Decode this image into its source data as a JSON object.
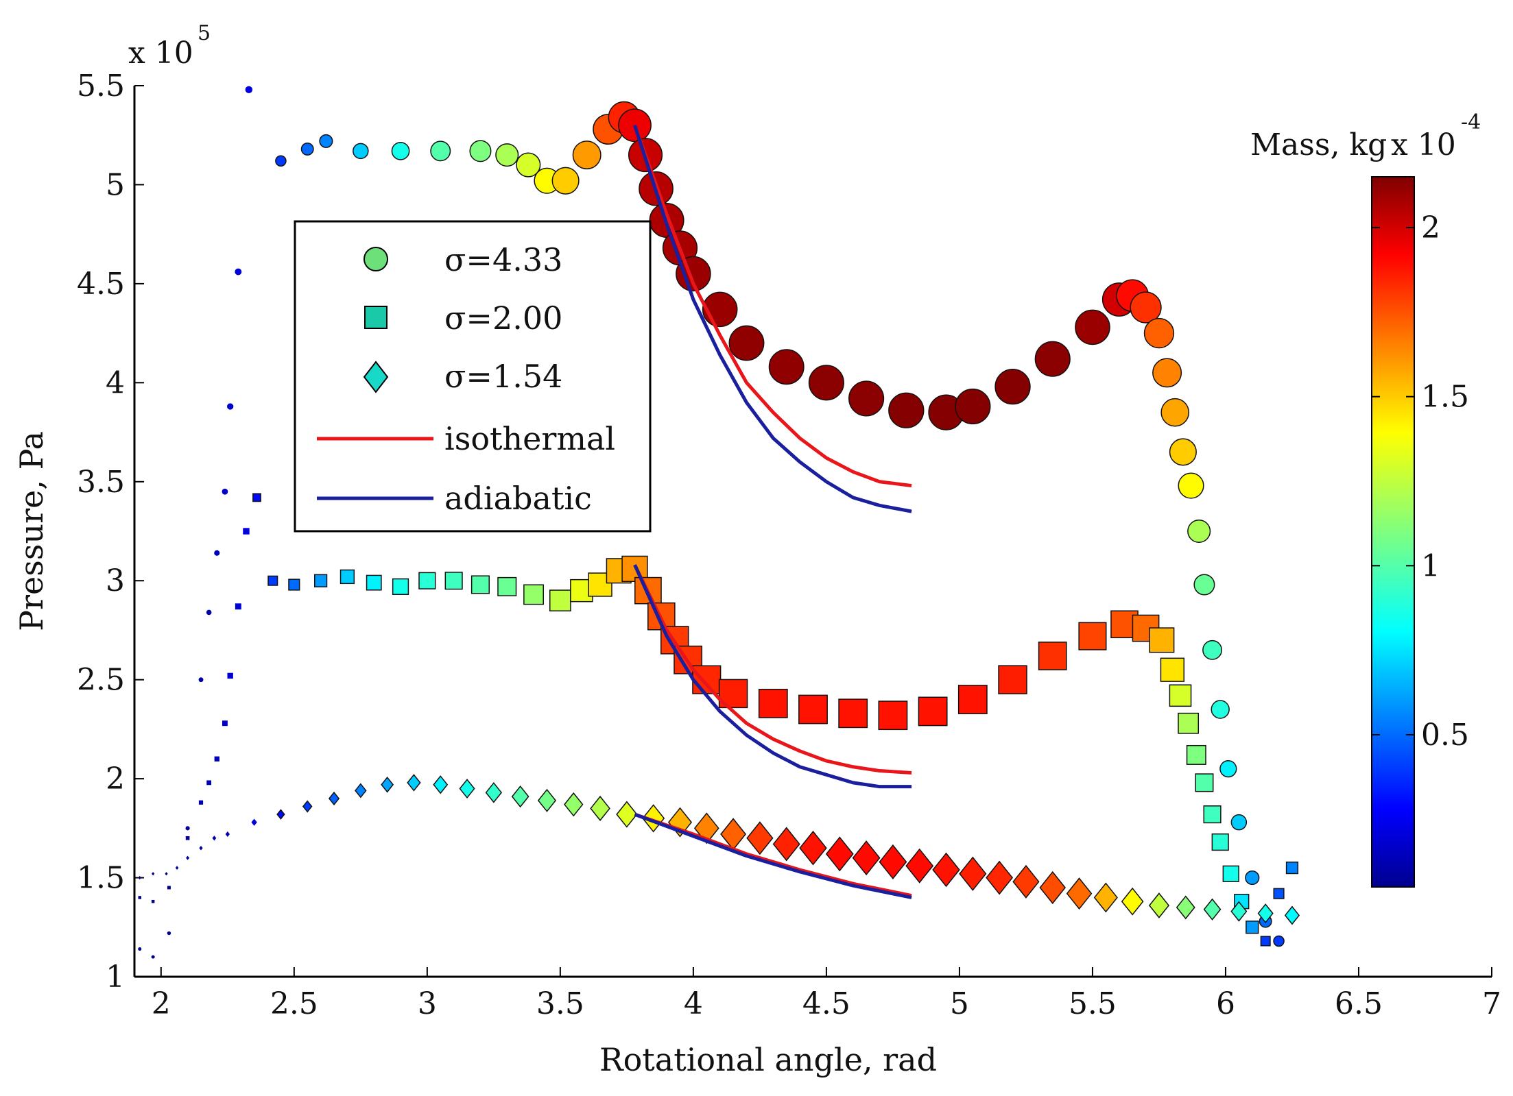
{
  "chart_data": {
    "type": "scatter",
    "title": "",
    "xlabel": "Rotational angle, rad",
    "ylabel": "Pressure, Pa",
    "xlim": [
      1.9,
      7
    ],
    "ylim": [
      1.0,
      5.5
    ],
    "xticks": [
      "2",
      "2.5",
      "3",
      "3.5",
      "4",
      "4.5",
      "5",
      "5.5",
      "6",
      "6.5",
      "7"
    ],
    "yticks": [
      "1",
      "1.5",
      "2",
      "2.5",
      "3",
      "3.5",
      "4",
      "4.5",
      "5",
      "5.5"
    ],
    "y_multiplier": "x 10",
    "y_multiplier_exp": "5",
    "legend": {
      "position": "top-left",
      "entries": [
        "σ=4.33",
        "σ=2.00",
        "σ=1.54",
        "isothermal",
        "adiabatic"
      ]
    },
    "colorbar": {
      "label": "Mass, kg",
      "multiplier": "x 10",
      "multiplier_exp": "-4",
      "range": [
        0.05,
        2.15
      ],
      "ticks": [
        "0.5",
        "1",
        "1.5",
        "2"
      ]
    },
    "series": [
      {
        "name": "σ=4.33",
        "marker": "circle",
        "x": [
          1.92,
          1.97,
          2.03,
          2.1,
          2.15,
          2.18,
          2.21,
          2.24,
          2.26,
          2.29,
          2.33,
          2.45,
          2.55,
          2.62,
          2.75,
          2.9,
          3.05,
          3.2,
          3.3,
          3.38,
          3.45,
          3.52,
          3.6,
          3.68,
          3.74,
          3.78,
          3.82,
          3.86,
          3.9,
          3.95,
          4.0,
          4.1,
          4.2,
          4.35,
          4.5,
          4.65,
          4.8,
          4.95,
          5.05,
          5.2,
          5.35,
          5.5,
          5.6,
          5.65,
          5.7,
          5.75,
          5.78,
          5.81,
          5.84,
          5.87,
          5.9,
          5.92,
          5.95,
          5.98,
          6.01,
          6.05,
          6.1,
          6.15,
          6.2
        ],
        "y": [
          1.14,
          1.1,
          1.22,
          1.75,
          2.5,
          2.84,
          3.14,
          3.45,
          3.88,
          4.56,
          5.48,
          5.12,
          5.18,
          5.22,
          5.17,
          5.17,
          5.17,
          5.17,
          5.15,
          5.1,
          5.02,
          5.02,
          5.15,
          5.28,
          5.34,
          5.3,
          5.15,
          4.98,
          4.82,
          4.68,
          4.55,
          4.37,
          4.2,
          4.08,
          4.0,
          3.92,
          3.86,
          3.85,
          3.88,
          3.98,
          4.12,
          4.28,
          4.42,
          4.44,
          4.38,
          4.25,
          4.05,
          3.85,
          3.65,
          3.48,
          3.25,
          2.98,
          2.65,
          2.35,
          2.05,
          1.78,
          1.5,
          1.28,
          1.18
        ],
        "mass": [
          0.05,
          0.05,
          0.06,
          0.08,
          0.1,
          0.12,
          0.14,
          0.16,
          0.18,
          0.2,
          0.22,
          0.4,
          0.5,
          0.55,
          0.7,
          0.85,
          1.0,
          1.1,
          1.2,
          1.3,
          1.4,
          1.5,
          1.6,
          1.75,
          1.85,
          1.95,
          2.02,
          2.05,
          2.07,
          2.08,
          2.1,
          2.1,
          2.12,
          2.12,
          2.13,
          2.13,
          2.14,
          2.14,
          2.14,
          2.14,
          2.13,
          2.1,
          2.0,
          1.9,
          1.82,
          1.72,
          1.65,
          1.58,
          1.5,
          1.4,
          1.2,
          1.05,
          0.95,
          0.88,
          0.78,
          0.7,
          0.6,
          0.5,
          0.4
        ]
      },
      {
        "name": "σ=2.00",
        "marker": "square",
        "x": [
          1.92,
          1.97,
          2.03,
          2.1,
          2.15,
          2.18,
          2.21,
          2.24,
          2.26,
          2.29,
          2.32,
          2.36,
          2.42,
          2.5,
          2.6,
          2.7,
          2.8,
          2.9,
          3.0,
          3.1,
          3.2,
          3.3,
          3.4,
          3.5,
          3.58,
          3.65,
          3.72,
          3.78,
          3.83,
          3.88,
          3.93,
          3.98,
          4.05,
          4.15,
          4.3,
          4.45,
          4.6,
          4.75,
          4.9,
          5.05,
          5.2,
          5.35,
          5.5,
          5.62,
          5.7,
          5.76,
          5.8,
          5.83,
          5.86,
          5.89,
          5.92,
          5.95,
          5.98,
          6.02,
          6.06,
          6.1,
          6.15,
          6.2,
          6.25
        ],
        "y": [
          1.4,
          1.38,
          1.45,
          1.7,
          1.88,
          1.98,
          2.1,
          2.28,
          2.52,
          2.87,
          3.25,
          3.42,
          3.0,
          2.98,
          3.0,
          3.02,
          2.99,
          2.97,
          3.0,
          3.0,
          2.98,
          2.97,
          2.93,
          2.9,
          2.95,
          2.98,
          3.05,
          3.06,
          2.95,
          2.82,
          2.7,
          2.6,
          2.5,
          2.43,
          2.38,
          2.35,
          2.33,
          2.32,
          2.34,
          2.4,
          2.5,
          2.62,
          2.72,
          2.78,
          2.76,
          2.7,
          2.55,
          2.42,
          2.28,
          2.12,
          1.98,
          1.82,
          1.68,
          1.52,
          1.38,
          1.25,
          1.18,
          1.42,
          1.55
        ],
        "mass": [
          0.05,
          0.05,
          0.06,
          0.08,
          0.1,
          0.12,
          0.14,
          0.16,
          0.18,
          0.2,
          0.22,
          0.3,
          0.4,
          0.5,
          0.6,
          0.7,
          0.78,
          0.85,
          0.9,
          0.95,
          1.0,
          1.05,
          1.15,
          1.25,
          1.35,
          1.45,
          1.55,
          1.62,
          1.7,
          1.75,
          1.8,
          1.82,
          1.84,
          1.86,
          1.88,
          1.88,
          1.88,
          1.88,
          1.88,
          1.88,
          1.86,
          1.82,
          1.78,
          1.75,
          1.7,
          1.55,
          1.45,
          1.3,
          1.2,
          1.1,
          1.0,
          0.95,
          0.9,
          0.85,
          0.75,
          0.6,
          0.4,
          0.45,
          0.55
        ]
      },
      {
        "name": "σ=1.54",
        "marker": "diamond",
        "x": [
          1.92,
          1.97,
          2.02,
          2.06,
          2.1,
          2.15,
          2.2,
          2.25,
          2.35,
          2.45,
          2.55,
          2.65,
          2.75,
          2.85,
          2.95,
          3.05,
          3.15,
          3.25,
          3.35,
          3.45,
          3.55,
          3.65,
          3.75,
          3.85,
          3.95,
          4.05,
          4.15,
          4.25,
          4.35,
          4.45,
          4.55,
          4.65,
          4.75,
          4.85,
          4.95,
          5.05,
          5.15,
          5.25,
          5.35,
          5.45,
          5.55,
          5.65,
          5.75,
          5.85,
          5.95,
          6.05,
          6.15,
          6.25
        ],
        "y": [
          1.5,
          1.52,
          1.52,
          1.55,
          1.6,
          1.65,
          1.7,
          1.72,
          1.78,
          1.82,
          1.86,
          1.9,
          1.94,
          1.97,
          1.98,
          1.97,
          1.95,
          1.93,
          1.91,
          1.89,
          1.87,
          1.85,
          1.82,
          1.8,
          1.78,
          1.75,
          1.72,
          1.7,
          1.67,
          1.65,
          1.62,
          1.6,
          1.58,
          1.56,
          1.54,
          1.52,
          1.5,
          1.48,
          1.45,
          1.42,
          1.4,
          1.38,
          1.36,
          1.35,
          1.34,
          1.33,
          1.32,
          1.31
        ],
        "mass": [
          0.05,
          0.05,
          0.05,
          0.06,
          0.07,
          0.08,
          0.1,
          0.12,
          0.2,
          0.3,
          0.4,
          0.48,
          0.55,
          0.62,
          0.7,
          0.78,
          0.85,
          0.92,
          1.0,
          1.08,
          1.15,
          1.22,
          1.32,
          1.42,
          1.55,
          1.65,
          1.72,
          1.8,
          1.85,
          1.88,
          1.9,
          1.9,
          1.9,
          1.9,
          1.88,
          1.86,
          1.84,
          1.8,
          1.76,
          1.7,
          1.55,
          1.4,
          1.25,
          1.12,
          1.0,
          0.9,
          0.85,
          0.8
        ]
      },
      {
        "name": "isothermal",
        "type": "line",
        "color": "#e8161b",
        "segments": [
          {
            "x": [
              3.78,
              3.9,
              4.0,
              4.1,
              4.2,
              4.3,
              4.4,
              4.5,
              4.6,
              4.7,
              4.82
            ],
            "y": [
              5.3,
              4.85,
              4.5,
              4.24,
              4.0,
              3.85,
              3.72,
              3.62,
              3.55,
              3.5,
              3.48
            ]
          },
          {
            "x": [
              3.78,
              3.9,
              4.0,
              4.1,
              4.2,
              4.3,
              4.4,
              4.5,
              4.6,
              4.7,
              4.82
            ],
            "y": [
              3.08,
              2.75,
              2.55,
              2.4,
              2.28,
              2.2,
              2.14,
              2.09,
              2.06,
              2.04,
              2.03
            ]
          },
          {
            "x": [
              3.78,
              4.0,
              4.2,
              4.4,
              4.6,
              4.82
            ],
            "y": [
              1.82,
              1.72,
              1.62,
              1.54,
              1.47,
              1.41
            ]
          }
        ]
      },
      {
        "name": "adiabatic",
        "type": "line",
        "color": "#1a1f9e",
        "segments": [
          {
            "x": [
              3.78,
              3.9,
              4.0,
              4.1,
              4.2,
              4.3,
              4.4,
              4.5,
              4.6,
              4.7,
              4.82
            ],
            "y": [
              5.3,
              4.8,
              4.42,
              4.14,
              3.9,
              3.72,
              3.6,
              3.5,
              3.42,
              3.38,
              3.35
            ]
          },
          {
            "x": [
              3.78,
              3.9,
              4.0,
              4.1,
              4.2,
              4.3,
              4.4,
              4.5,
              4.6,
              4.7,
              4.82
            ],
            "y": [
              3.08,
              2.72,
              2.5,
              2.34,
              2.22,
              2.13,
              2.06,
              2.02,
              1.98,
              1.96,
              1.96
            ]
          },
          {
            "x": [
              3.78,
              4.0,
              4.2,
              4.4,
              4.6,
              4.82
            ],
            "y": [
              1.82,
              1.71,
              1.61,
              1.53,
              1.46,
              1.4
            ]
          }
        ]
      }
    ]
  }
}
